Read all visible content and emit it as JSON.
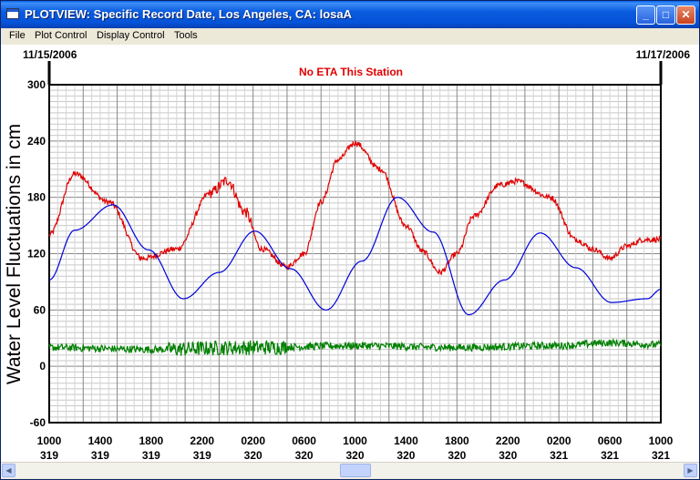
{
  "window": {
    "title": "PLOTVIEW: Specific Record Date, Los Angeles, CA: losaA",
    "minimize_glyph": "_",
    "maximize_glyph": "□",
    "close_glyph": "✕"
  },
  "menu": {
    "items": [
      "File",
      "Plot Control",
      "Display Control",
      "Tools"
    ]
  },
  "scrollbar": {
    "left_glyph": "◀",
    "right_glyph": "▶"
  },
  "chart_data": {
    "type": "line",
    "title": "No ETA This Station",
    "ylabel": "Water Level Fluctuations in cm",
    "start_date": "11/15/2006",
    "end_date": "11/17/2006",
    "ylim": [
      -60,
      300
    ],
    "yticks": [
      "300",
      "240",
      "180",
      "120",
      "60",
      "0",
      "-60"
    ],
    "xticks": [
      {
        "time": "1000",
        "day": "319"
      },
      {
        "time": "1400",
        "day": "319"
      },
      {
        "time": "1800",
        "day": "319"
      },
      {
        "time": "2200",
        "day": "319"
      },
      {
        "time": "0200",
        "day": "320"
      },
      {
        "time": "0600",
        "day": "320"
      },
      {
        "time": "1000",
        "day": "320"
      },
      {
        "time": "1400",
        "day": "320"
      },
      {
        "time": "1800",
        "day": "320"
      },
      {
        "time": "2200",
        "day": "320"
      },
      {
        "time": "0200",
        "day": "321"
      },
      {
        "time": "0600",
        "day": "321"
      },
      {
        "time": "1000",
        "day": "321"
      }
    ],
    "grid": true,
    "series": [
      {
        "color": "#E00000",
        "noise": 3,
        "x": [
          0,
          3,
          7,
          11,
          15,
          19,
          21,
          23,
          25,
          28,
          30,
          32,
          34,
          36,
          39,
          42,
          44,
          46,
          48,
          50,
          53,
          55,
          59,
          62,
          64,
          66,
          68,
          70,
          72
        ],
        "y": [
          140,
          205,
          175,
          115,
          125,
          185,
          198,
          165,
          125,
          106,
          120,
          175,
          220,
          238,
          210,
          150,
          122,
          100,
          120,
          160,
          193,
          197,
          180,
          135,
          125,
          115,
          128,
          135,
          135
        ]
      },
      {
        "color": "#0000DD",
        "noise": 0,
        "x": [
          0,
          3,
          7.5,
          11.7,
          15.8,
          20,
          24.2,
          28.4,
          32.6,
          36.8,
          41,
          45.2,
          49.4,
          53.6,
          57.8,
          62,
          66.2,
          70.4,
          72
        ],
        "y": [
          92,
          145,
          172,
          124,
          72,
          100,
          144,
          104,
          60,
          112,
          180,
          143,
          55,
          92,
          142,
          105,
          68,
          72,
          82
        ]
      },
      {
        "color": "#008000",
        "noise": 4,
        "x": [
          0,
          12,
          24,
          36,
          48,
          60,
          66,
          72
        ],
        "y": [
          20,
          18,
          20,
          22,
          20,
          22,
          25,
          23
        ]
      }
    ]
  }
}
